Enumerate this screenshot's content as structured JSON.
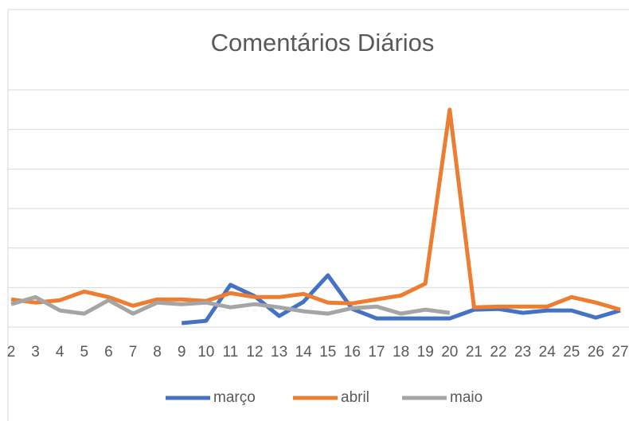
{
  "chart_data": {
    "type": "line",
    "title": "Comentários Diários",
    "categories": [
      "2",
      "3",
      "4",
      "5",
      "6",
      "7",
      "8",
      "9",
      "10",
      "11",
      "12",
      "13",
      "14",
      "15",
      "16",
      "17",
      "18",
      "19",
      "20",
      "21",
      "22",
      "23",
      "24",
      "25",
      "26",
      "27"
    ],
    "series": [
      {
        "name": "março",
        "color": "#4472c4",
        "values": [
          null,
          null,
          null,
          null,
          null,
          null,
          null,
          0.1,
          0.16,
          1.07,
          0.78,
          0.28,
          0.64,
          1.31,
          0.46,
          0.22,
          0.22,
          0.22,
          0.22,
          0.44,
          0.46,
          0.36,
          0.42,
          0.42,
          0.24,
          0.42
        ]
      },
      {
        "name": "abril",
        "color": "#ed7d31",
        "values": [
          0.7,
          0.62,
          0.68,
          0.9,
          0.76,
          0.54,
          0.7,
          0.7,
          0.66,
          0.86,
          0.76,
          0.76,
          0.84,
          0.62,
          0.6,
          0.7,
          0.8,
          1.1,
          5.5,
          0.5,
          0.52,
          0.52,
          0.52,
          0.76,
          0.62,
          0.44
        ]
      },
      {
        "name": "maio",
        "color": "#a5a5a5",
        "values": [
          0.58,
          0.76,
          0.42,
          0.34,
          0.68,
          0.34,
          0.62,
          0.58,
          0.62,
          0.5,
          0.58,
          0.5,
          0.4,
          0.34,
          0.48,
          0.52,
          0.34,
          0.44,
          0.36,
          null,
          null,
          null,
          null,
          null,
          null,
          null
        ]
      }
    ],
    "ylim": [
      0,
      6
    ],
    "yticks": [
      0,
      1,
      2,
      3,
      4,
      5,
      6
    ],
    "grid": true,
    "legend": "bottom"
  }
}
